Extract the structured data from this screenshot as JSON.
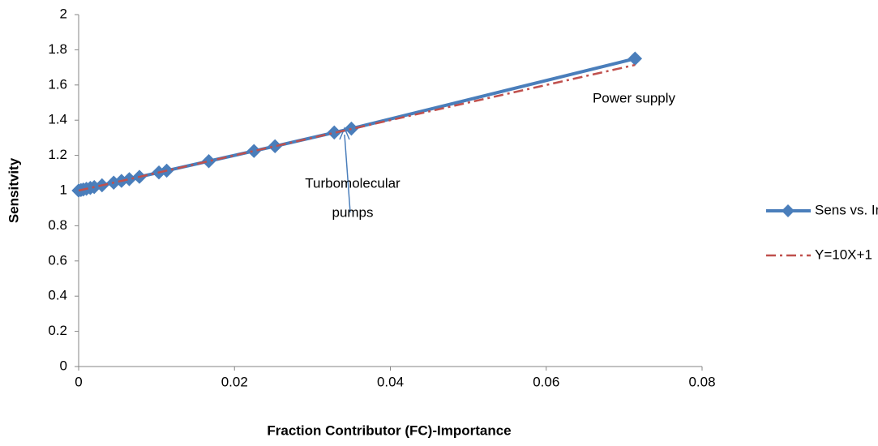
{
  "chart_data": {
    "type": "line",
    "xlabel": "Fraction Contributor (FC)-Importance",
    "ylabel": "Sensitvity",
    "xlim": [
      0,
      0.08
    ],
    "ylim": [
      0,
      2
    ],
    "xticks": [
      0,
      0.02,
      0.04,
      0.06,
      0.08
    ],
    "yticks": [
      0,
      0.2,
      0.4,
      0.6,
      0.8,
      1,
      1.2,
      1.4,
      1.6,
      1.8,
      2
    ],
    "grid": false,
    "legend": "right",
    "series": [
      {
        "name": "Sens vs. Imp",
        "color": "#4a7ebb",
        "marker": "diamond",
        "style": "solid",
        "x": [
          0,
          0.0003,
          0.0006,
          0.001,
          0.0015,
          0.002,
          0.003,
          0.0045,
          0.0055,
          0.0065,
          0.0078,
          0.0103,
          0.0113,
          0.0167,
          0.0225,
          0.0252,
          0.0328,
          0.035,
          0.0714
        ],
        "values": [
          1,
          1.003,
          1.006,
          1.01,
          1.015,
          1.02,
          1.03,
          1.045,
          1.055,
          1.065,
          1.078,
          1.103,
          1.113,
          1.167,
          1.225,
          1.252,
          1.33,
          1.352,
          1.75
        ]
      },
      {
        "name": "Y=10X+1",
        "color": "#c0504d",
        "marker": "none",
        "style": "dashdot",
        "x": [
          0,
          0.0714
        ],
        "values": [
          1,
          1.714
        ]
      }
    ],
    "annotations": [
      {
        "lines": [
          "Power supply"
        ]
      },
      {
        "lines": [
          "Turbomolecular",
          "pumps"
        ]
      }
    ]
  }
}
